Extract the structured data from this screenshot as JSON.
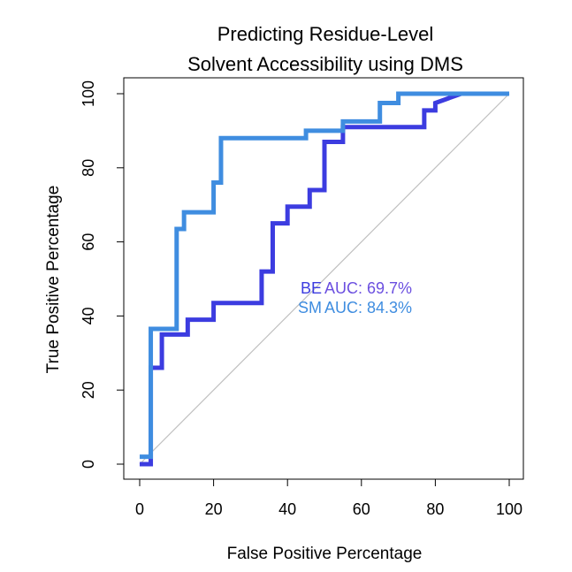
{
  "chart_data": {
    "type": "line",
    "title_lines": [
      "Predicting Residue-Level",
      "Solvent Accessibility using DMS"
    ],
    "xlabel": "False Positive Percentage",
    "ylabel": "True Positive Percentage",
    "xlim": [
      0,
      100
    ],
    "ylim": [
      0,
      100
    ],
    "xticks": [
      0,
      20,
      40,
      60,
      80,
      100
    ],
    "yticks": [
      0,
      20,
      40,
      60,
      80,
      100
    ],
    "grid": false,
    "diagonal_reference": true,
    "diagonal_color": "#c0c0c0",
    "series": [
      {
        "name": "BE",
        "auc_label": "AUC: 69.7%",
        "color": "#3c3ce0",
        "x": [
          0,
          3,
          3,
          6,
          6,
          13,
          13,
          20,
          20,
          33,
          33,
          36,
          36,
          40,
          40,
          46,
          46,
          50,
          50,
          55,
          55,
          77,
          77,
          80,
          80,
          87,
          100
        ],
        "y": [
          0,
          0,
          26,
          26,
          35,
          35,
          39,
          39,
          43.5,
          43.5,
          52,
          52,
          65,
          65,
          69.5,
          69.5,
          74,
          74,
          87,
          87,
          91,
          91,
          95.5,
          95.5,
          97.5,
          100,
          100
        ]
      },
      {
        "name": "SM",
        "auc_label": "AUC: 84.3%",
        "color": "#3f8de0",
        "x": [
          0,
          3,
          3,
          10,
          10,
          12,
          12,
          20,
          20,
          22,
          22,
          45,
          45,
          55,
          55,
          65,
          65,
          70,
          70,
          100
        ],
        "y": [
          2,
          2,
          36.5,
          36.5,
          63.5,
          63.5,
          68,
          68,
          76,
          76,
          88,
          88,
          90,
          90,
          92.5,
          92.5,
          97.5,
          97.5,
          100,
          100
        ]
      }
    ]
  }
}
